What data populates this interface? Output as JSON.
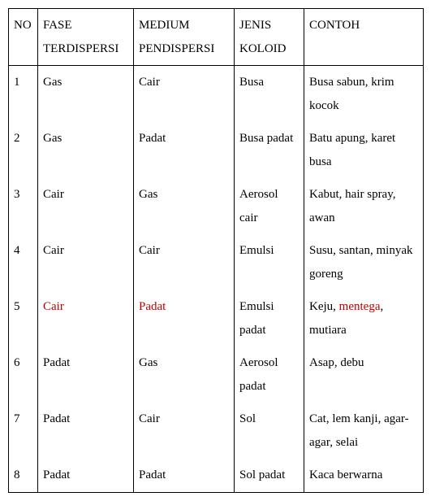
{
  "table": {
    "columns": [
      "NO",
      "FASE TERDISPERSI",
      "MEDIUM PENDISPERSI",
      "JENIS KOLOID",
      "CONTOH"
    ],
    "highlight_color": "#c00000",
    "rows": [
      {
        "no": "1",
        "fase": {
          "segments": [
            {
              "t": "Gas"
            }
          ]
        },
        "medium": {
          "segments": [
            {
              "t": "Cair"
            }
          ]
        },
        "jenis": {
          "segments": [
            {
              "t": "Busa"
            }
          ]
        },
        "contoh": {
          "segments": [
            {
              "t": "Busa sabun, krim kocok"
            }
          ]
        }
      },
      {
        "no": "2",
        "fase": {
          "segments": [
            {
              "t": "Gas"
            }
          ]
        },
        "medium": {
          "segments": [
            {
              "t": "Padat"
            }
          ]
        },
        "jenis": {
          "segments": [
            {
              "t": "Busa padat"
            }
          ]
        },
        "contoh": {
          "segments": [
            {
              "t": "Batu apung, karet busa"
            }
          ]
        }
      },
      {
        "no": "3",
        "fase": {
          "segments": [
            {
              "t": "Cair"
            }
          ]
        },
        "medium": {
          "segments": [
            {
              "t": "Gas"
            }
          ]
        },
        "jenis": {
          "segments": [
            {
              "t": "Aerosol cair"
            }
          ]
        },
        "contoh": {
          "segments": [
            {
              "t": "Kabut, hair spray, awan"
            }
          ]
        }
      },
      {
        "no": "4",
        "fase": {
          "segments": [
            {
              "t": "Cair"
            }
          ]
        },
        "medium": {
          "segments": [
            {
              "t": "Cair"
            }
          ]
        },
        "jenis": {
          "segments": [
            {
              "t": "Emulsi"
            }
          ]
        },
        "contoh": {
          "segments": [
            {
              "t": "Susu, santan, minyak goreng"
            }
          ]
        }
      },
      {
        "no": "5",
        "fase": {
          "segments": [
            {
              "t": "Cair",
              "hl": true
            }
          ]
        },
        "medium": {
          "segments": [
            {
              "t": "Padat",
              "hl": true
            }
          ]
        },
        "jenis": {
          "segments": [
            {
              "t": "Emulsi padat"
            }
          ]
        },
        "contoh": {
          "segments": [
            {
              "t": "Keju, "
            },
            {
              "t": "mentega",
              "hl": true
            },
            {
              "t": ", mutiara"
            }
          ]
        }
      },
      {
        "no": "6",
        "fase": {
          "segments": [
            {
              "t": "Padat"
            }
          ]
        },
        "medium": {
          "segments": [
            {
              "t": "Gas"
            }
          ]
        },
        "jenis": {
          "segments": [
            {
              "t": "Aerosol padat"
            }
          ]
        },
        "contoh": {
          "segments": [
            {
              "t": "Asap, debu"
            }
          ]
        }
      },
      {
        "no": "7",
        "fase": {
          "segments": [
            {
              "t": "Padat"
            }
          ]
        },
        "medium": {
          "segments": [
            {
              "t": "Cair"
            }
          ]
        },
        "jenis": {
          "segments": [
            {
              "t": "Sol"
            }
          ]
        },
        "contoh": {
          "segments": [
            {
              "t": "Cat, lem kanji, agar-agar, selai"
            }
          ]
        }
      },
      {
        "no": "8",
        "fase": {
          "segments": [
            {
              "t": "Padat"
            }
          ]
        },
        "medium": {
          "segments": [
            {
              "t": "Padat"
            }
          ]
        },
        "jenis": {
          "segments": [
            {
              "t": "Sol padat"
            }
          ]
        },
        "contoh": {
          "segments": [
            {
              "t": "Kaca berwarna"
            }
          ]
        }
      }
    ]
  }
}
